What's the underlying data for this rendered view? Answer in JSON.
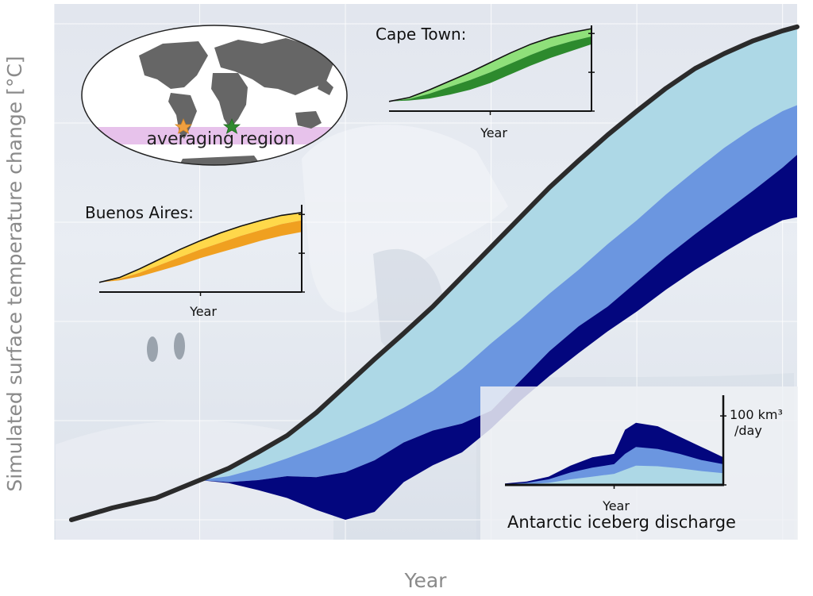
{
  "chart_data": [
    {
      "type": "area",
      "title": "",
      "xlabel": "Year",
      "ylabel": "Simulated surface temperature change [°C]",
      "xlim": [
        1950,
        2205
      ],
      "ylim": [
        -0.2,
        5.2
      ],
      "xticks": [
        1950,
        2000,
        2050,
        2100,
        2150,
        2200
      ],
      "yticks": [
        0,
        1,
        2,
        3,
        4,
        5
      ],
      "grid": true,
      "background": "photograph of Antarctic ice with penguins (washed out)",
      "x": [
        1956,
        1970,
        1985,
        2000,
        2010,
        2020,
        2030,
        2040,
        2050,
        2060,
        2070,
        2080,
        2090,
        2100,
        2110,
        2120,
        2130,
        2140,
        2150,
        2160,
        2170,
        2180,
        2190,
        2200,
        2205
      ],
      "line": {
        "name": "upper envelope",
        "color": "#2b2b2b",
        "values": [
          0.0,
          0.12,
          0.22,
          0.4,
          0.52,
          0.68,
          0.85,
          1.08,
          1.35,
          1.62,
          1.88,
          2.15,
          2.45,
          2.75,
          3.05,
          3.35,
          3.62,
          3.88,
          4.12,
          4.35,
          4.55,
          4.7,
          4.83,
          4.93,
          4.97
        ]
      },
      "bands": [
        {
          "color": "#add8e6",
          "upper": [
            null,
            null,
            null,
            0.4,
            0.52,
            0.68,
            0.85,
            1.08,
            1.35,
            1.62,
            1.88,
            2.15,
            2.45,
            2.75,
            3.05,
            3.35,
            3.62,
            3.88,
            4.12,
            4.35,
            4.55,
            4.7,
            4.83,
            4.93,
            4.97
          ],
          "lower": [
            null,
            null,
            null,
            0.4,
            0.44,
            0.52,
            0.62,
            0.73,
            0.85,
            0.98,
            1.13,
            1.3,
            1.52,
            1.78,
            2.02,
            2.28,
            2.52,
            2.78,
            3.02,
            3.28,
            3.52,
            3.75,
            3.95,
            4.12,
            4.18
          ]
        },
        {
          "color": "#6b96e0",
          "upper": [
            null,
            null,
            null,
            0.4,
            0.44,
            0.52,
            0.62,
            0.73,
            0.85,
            0.98,
            1.13,
            1.3,
            1.52,
            1.78,
            2.02,
            2.28,
            2.52,
            2.78,
            3.02,
            3.28,
            3.52,
            3.75,
            3.95,
            4.12,
            4.18
          ],
          "lower": [
            null,
            null,
            null,
            0.4,
            0.38,
            0.4,
            0.44,
            0.43,
            0.48,
            0.6,
            0.78,
            0.9,
            0.97,
            1.1,
            1.4,
            1.7,
            1.95,
            2.15,
            2.4,
            2.65,
            2.88,
            3.1,
            3.32,
            3.55,
            3.68
          ]
        },
        {
          "color": "#03067e",
          "upper": [
            null,
            null,
            null,
            0.4,
            0.38,
            0.4,
            0.44,
            0.43,
            0.48,
            0.6,
            0.78,
            0.9,
            0.97,
            1.1,
            1.4,
            1.7,
            1.95,
            2.15,
            2.4,
            2.65,
            2.88,
            3.1,
            3.32,
            3.55,
            3.68
          ],
          "lower": [
            null,
            null,
            null,
            0.4,
            0.37,
            0.3,
            0.22,
            0.1,
            0.0,
            0.08,
            0.38,
            0.55,
            0.68,
            0.92,
            1.2,
            1.45,
            1.68,
            1.9,
            2.1,
            2.32,
            2.52,
            2.7,
            2.87,
            3.02,
            3.05
          ]
        }
      ]
    },
    {
      "type": "area",
      "title": "Cape Town:",
      "xlabel": "Year",
      "xlim": [
        2000,
        2200
      ],
      "ylim": [
        0,
        4.5
      ],
      "xticks": [
        "2000",
        "2200"
      ],
      "yticks": [
        "0°C",
        "2°C",
        "4°C"
      ],
      "x": [
        2000,
        2020,
        2040,
        2060,
        2080,
        2100,
        2120,
        2140,
        2160,
        2180,
        2200
      ],
      "upper": [
        0.5,
        0.7,
        1.1,
        1.55,
        2.0,
        2.5,
        3.0,
        3.45,
        3.8,
        4.05,
        4.25
      ],
      "mid": [
        0.5,
        0.62,
        0.9,
        1.25,
        1.6,
        2.0,
        2.45,
        2.9,
        3.3,
        3.6,
        3.85
      ],
      "lower": [
        0.5,
        0.55,
        0.65,
        0.85,
        1.1,
        1.45,
        1.9,
        2.35,
        2.75,
        3.1,
        3.45
      ],
      "colors": [
        "#2d8a2d",
        "#8fe07a"
      ]
    },
    {
      "type": "area",
      "title": "Buenos Aires:",
      "xlabel": "Year",
      "xlim": [
        2000,
        2200
      ],
      "ylim": [
        0,
        4.5
      ],
      "xticks": [
        "2000",
        "2200"
      ],
      "yticks": [
        "0°C",
        "2°C",
        "4°C"
      ],
      "x": [
        2000,
        2020,
        2040,
        2060,
        2080,
        2100,
        2120,
        2140,
        2160,
        2180,
        2200
      ],
      "upper": [
        0.5,
        0.75,
        1.2,
        1.7,
        2.2,
        2.65,
        3.05,
        3.4,
        3.7,
        3.95,
        4.1
      ],
      "mid": [
        0.5,
        0.68,
        1.0,
        1.4,
        1.8,
        2.2,
        2.55,
        2.9,
        3.2,
        3.5,
        3.7
      ],
      "lower": [
        0.5,
        0.6,
        0.8,
        1.1,
        1.4,
        1.75,
        2.05,
        2.35,
        2.65,
        2.9,
        3.1
      ],
      "colors": [
        "#f0a020",
        "#ffd84a"
      ]
    },
    {
      "type": "area",
      "title": "Antarctic iceberg discharge",
      "xlabel": "Year",
      "xlim": [
        2000,
        2200
      ],
      "ylim": [
        0,
        130
      ],
      "xticks": [
        "2000",
        "2200"
      ],
      "yticks": [
        "0",
        "100 km³\n/day"
      ],
      "x": [
        2000,
        2020,
        2040,
        2060,
        2080,
        2100,
        2110,
        2120,
        2140,
        2160,
        2180,
        2200
      ],
      "dark_upper": [
        2,
        5,
        12,
        28,
        40,
        45,
        80,
        90,
        85,
        70,
        55,
        40
      ],
      "mid_upper": [
        1,
        3,
        8,
        18,
        25,
        30,
        45,
        55,
        52,
        45,
        36,
        30
      ],
      "light_upper": [
        0.5,
        1,
        3,
        8,
        12,
        16,
        22,
        28,
        27,
        24,
        20,
        17
      ],
      "colors": [
        "#03067e",
        "#6b96e0",
        "#add8e6"
      ]
    }
  ],
  "map": {
    "label": "averaging region",
    "markers": [
      {
        "name": "Buenos Aires",
        "color": "#f0a040"
      },
      {
        "name": "Cape Town",
        "color": "#2f8a2f"
      }
    ],
    "band_color": "#e3b7e8"
  }
}
